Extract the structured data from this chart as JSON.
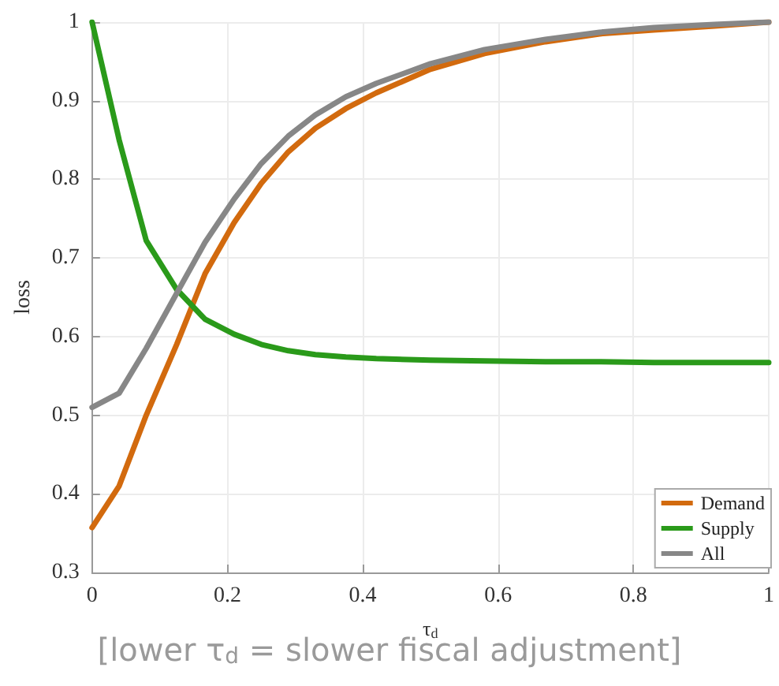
{
  "chart_data": {
    "type": "line",
    "xlabel": "τ$_{d}$",
    "ylabel": "loss",
    "annotations": [
      "[lower τ$_{d}$ = slower fiscal adjustment]"
    ],
    "x": [
      0,
      0.04,
      0.08,
      0.125,
      0.167,
      0.21,
      0.25,
      0.29,
      0.33,
      0.375,
      0.42,
      0.5,
      0.58,
      0.67,
      0.75,
      0.83,
      0.92,
      1
    ],
    "series": [
      {
        "name": "Demand",
        "color": "#d26a0e",
        "values": [
          0.357,
          0.41,
          0.5,
          0.59,
          0.68,
          0.745,
          0.795,
          0.835,
          0.865,
          0.89,
          0.91,
          0.94,
          0.96,
          0.975,
          0.985,
          0.99,
          0.995,
          1.0
        ]
      },
      {
        "name": "Supply",
        "color": "#2a9a1a",
        "values": [
          1.0,
          0.85,
          0.722,
          0.66,
          0.622,
          0.603,
          0.59,
          0.582,
          0.577,
          0.574,
          0.572,
          0.57,
          0.569,
          0.568,
          0.568,
          0.567,
          0.567,
          0.567
        ]
      },
      {
        "name": "All",
        "color": "#878787",
        "values": [
          0.51,
          0.528,
          0.585,
          0.655,
          0.72,
          0.775,
          0.82,
          0.855,
          0.882,
          0.905,
          0.922,
          0.947,
          0.965,
          0.978,
          0.987,
          0.993,
          0.997,
          1.0
        ]
      }
    ],
    "xlim": [
      0,
      1
    ],
    "xticks": [
      0,
      0.2,
      0.4,
      0.6,
      0.8,
      1
    ],
    "ylim": [
      0.3,
      1
    ],
    "yticks": [
      0.3,
      0.4,
      0.5,
      0.6,
      0.7,
      0.8,
      0.9,
      1
    ],
    "grid": true,
    "legend": "bottom right",
    "marker": "none",
    "line_style": "solid"
  }
}
